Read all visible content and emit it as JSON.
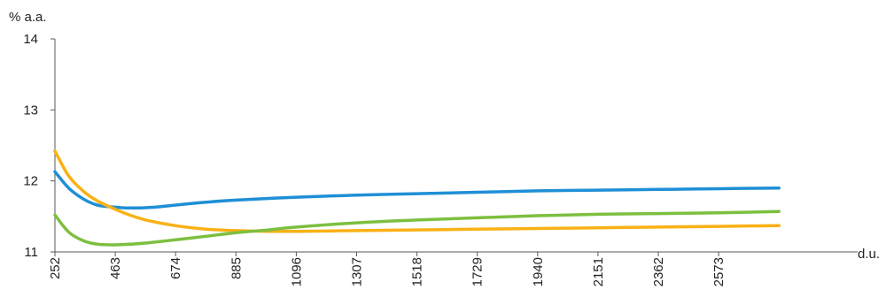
{
  "chart_data": {
    "type": "line",
    "title": "",
    "ylabel": "% a.a.",
    "xlabel": "d.u.",
    "ylim": [
      11,
      14
    ],
    "yticks": [
      11,
      12,
      13,
      14
    ],
    "xlim": [
      252,
      2784
    ],
    "xticks": [
      252,
      463,
      674,
      885,
      1096,
      1307,
      1518,
      1729,
      1940,
      2151,
      2362,
      2573
    ],
    "grid": false,
    "colors": {
      "blue": "#1f8fd6",
      "orange": "#f9b115",
      "green": "#7dbf3f"
    },
    "series": [
      {
        "color": "#1f8fd6",
        "x": [
          252,
          300,
          350,
          400,
          463,
          500,
          550,
          600,
          674,
          780,
          885,
          1096,
          1307,
          1518,
          1729,
          1940,
          2151,
          2362,
          2573,
          2784
        ],
        "values": [
          12.13,
          11.9,
          11.75,
          11.66,
          11.63,
          11.62,
          11.62,
          11.63,
          11.66,
          11.7,
          11.73,
          11.77,
          11.8,
          11.82,
          11.84,
          11.86,
          11.87,
          11.88,
          11.89,
          11.9
        ]
      },
      {
        "color": "#f9b115",
        "x": [
          252,
          300,
          350,
          400,
          463,
          520,
          580,
          674,
          780,
          885,
          1000,
          1096,
          1307,
          1518,
          1729,
          1940,
          2151,
          2362,
          2573,
          2784
        ],
        "values": [
          12.42,
          12.07,
          11.86,
          11.72,
          11.6,
          11.51,
          11.44,
          11.37,
          11.32,
          11.3,
          11.29,
          11.29,
          11.3,
          11.31,
          11.32,
          11.33,
          11.34,
          11.35,
          11.36,
          11.37
        ]
      },
      {
        "color": "#7dbf3f",
        "x": [
          252,
          300,
          350,
          400,
          463,
          520,
          580,
          674,
          780,
          885,
          1000,
          1096,
          1307,
          1518,
          1729,
          1940,
          2151,
          2362,
          2573,
          2784
        ],
        "values": [
          11.52,
          11.28,
          11.16,
          11.11,
          11.1,
          11.11,
          11.13,
          11.17,
          11.22,
          11.27,
          11.31,
          11.35,
          11.41,
          11.45,
          11.48,
          11.51,
          11.53,
          11.54,
          11.55,
          11.57
        ]
      }
    ]
  }
}
